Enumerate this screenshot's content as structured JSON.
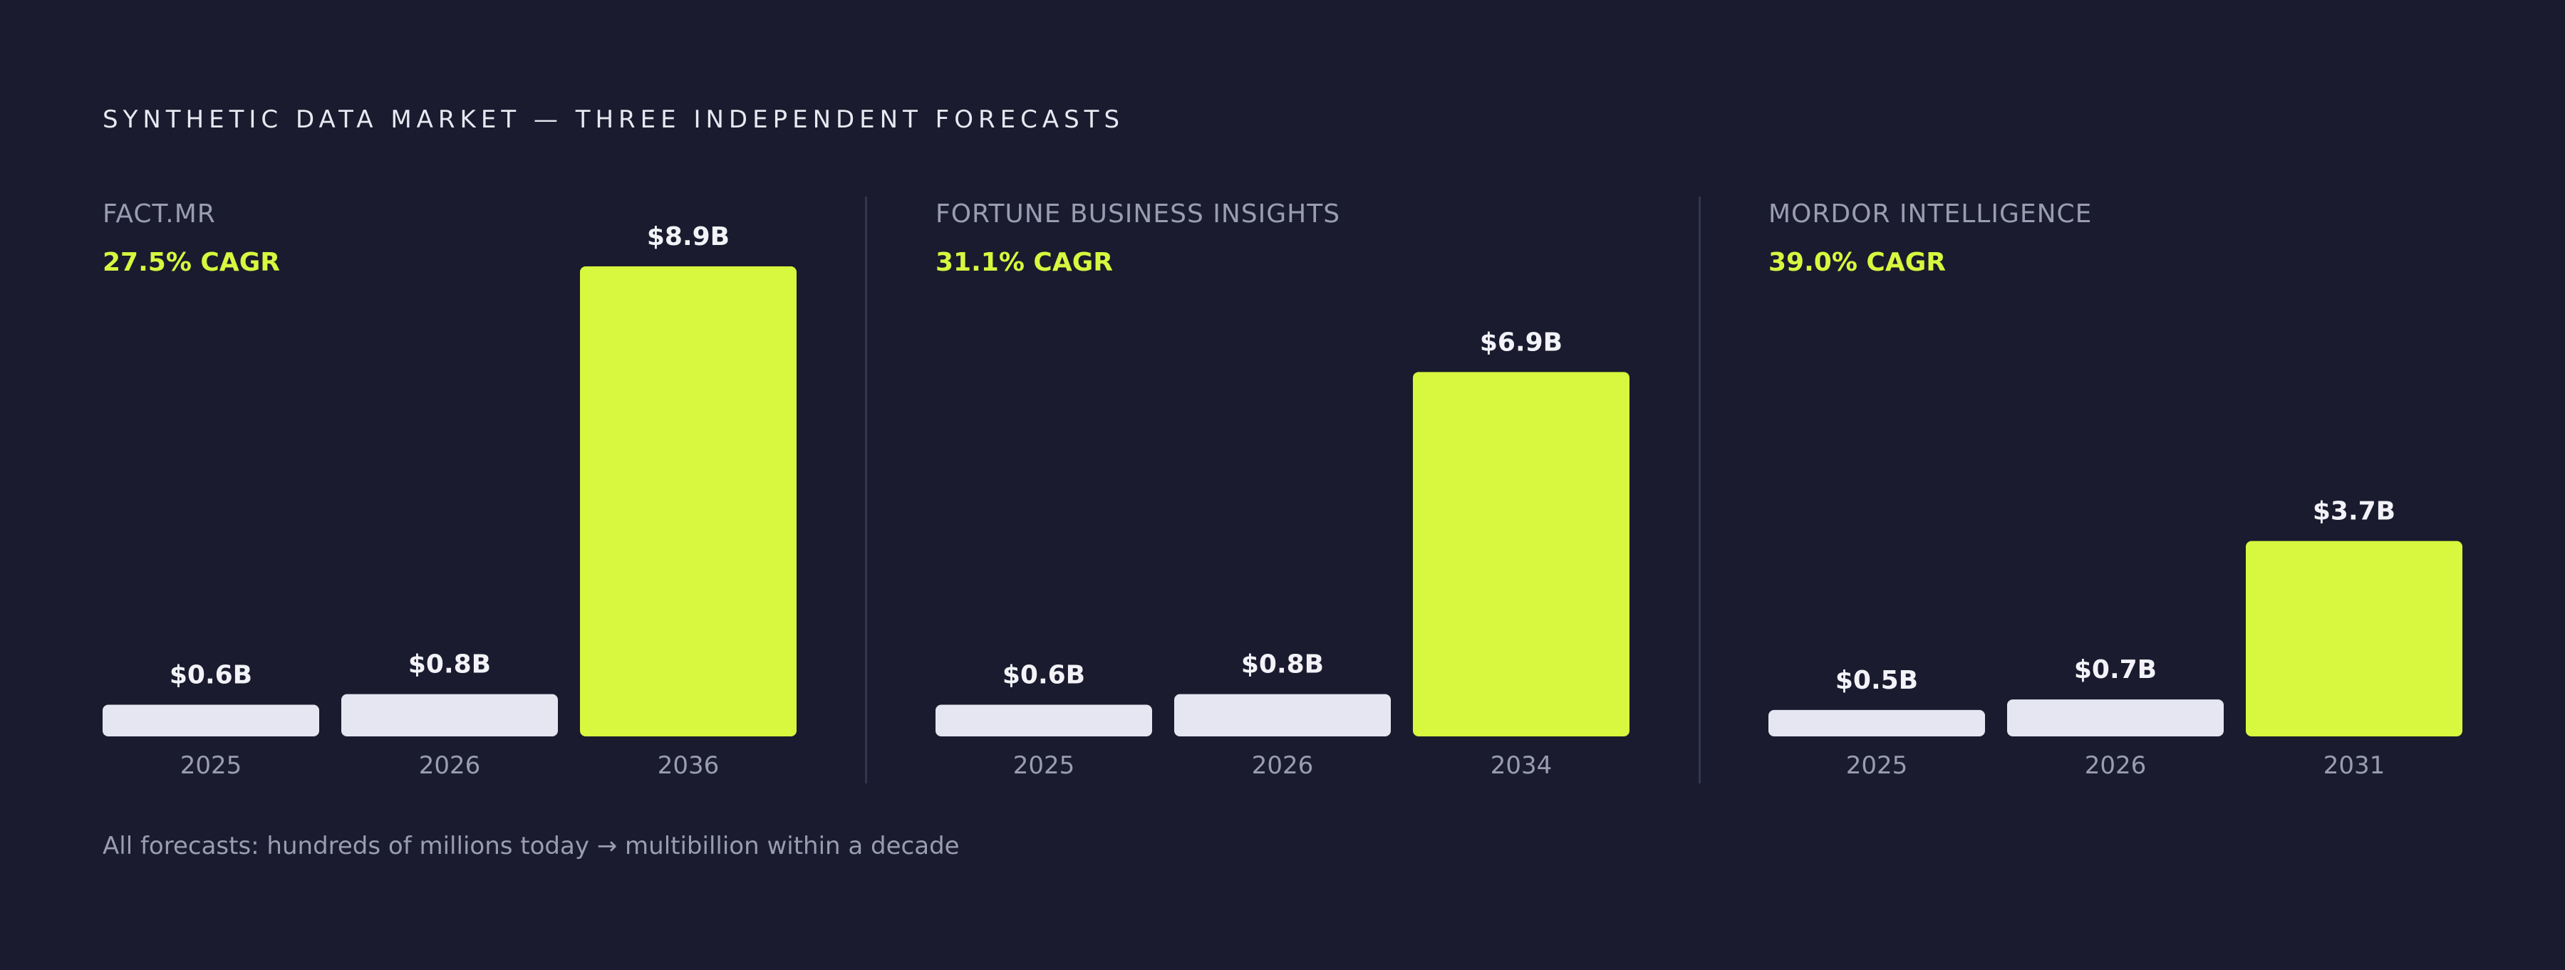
{
  "title": "SYNTHETIC DATA MARKET — THREE INDEPENDENT FORECASTS",
  "footer": "All forecasts: hundreds of millions today → multibillion within a decade",
  "colors": {
    "background": "#1a1b2e",
    "current_bar": "#e6e6f2",
    "forecast_bar": "#d8f73f",
    "muted_text": "#9a9cb0",
    "divider": "#34364c"
  },
  "chart_data": [
    {
      "type": "bar",
      "forecaster": "FACT.MR",
      "cagr": "27.5% CAGR",
      "categories": [
        "2025",
        "2026",
        "2036"
      ],
      "values": [
        0.6,
        0.8,
        8.9
      ],
      "value_labels": [
        "$0.6B",
        "$0.8B",
        "$8.9B"
      ],
      "ylim": [
        0,
        8.9
      ],
      "highlight_index": 2
    },
    {
      "type": "bar",
      "forecaster": "FORTUNE BUSINESS INSIGHTS",
      "cagr": "31.1% CAGR",
      "categories": [
        "2025",
        "2026",
        "2034"
      ],
      "values": [
        0.6,
        0.8,
        6.9
      ],
      "value_labels": [
        "$0.6B",
        "$0.8B",
        "$6.9B"
      ],
      "ylim": [
        0,
        8.9
      ],
      "highlight_index": 2
    },
    {
      "type": "bar",
      "forecaster": "MORDOR INTELLIGENCE",
      "cagr": "39.0% CAGR",
      "categories": [
        "2025",
        "2026",
        "2031"
      ],
      "values": [
        0.5,
        0.7,
        3.7
      ],
      "value_labels": [
        "$0.5B",
        "$0.7B",
        "$3.7B"
      ],
      "ylim": [
        0,
        8.9
      ],
      "highlight_index": 2
    }
  ]
}
